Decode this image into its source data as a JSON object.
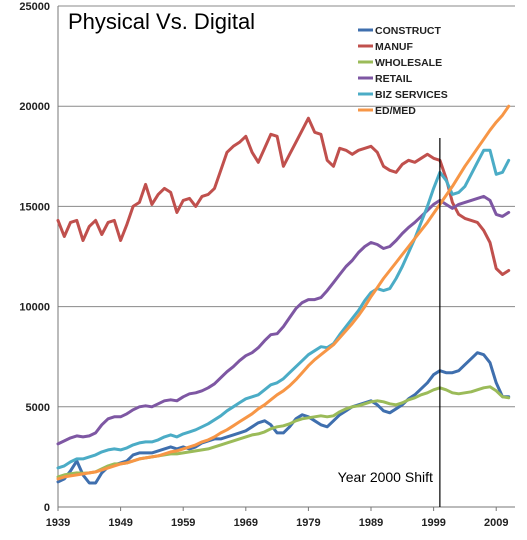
{
  "chart_data": {
    "type": "line",
    "title": "Physical Vs. Digital",
    "xlabel": "",
    "ylabel": "",
    "xlim": [
      1939,
      2012
    ],
    "ylim": [
      0,
      25000
    ],
    "x_ticks": [
      "1939",
      "1949",
      "1959",
      "1969",
      "1979",
      "1989",
      "1999",
      "2009"
    ],
    "y_ticks": [
      "0",
      "5000",
      "10000",
      "15000",
      "20000",
      "25000"
    ],
    "grid": "horizontal",
    "legend_position": "top-right",
    "annotation": {
      "label": "Year 2000 Shift",
      "x": 2000
    },
    "x": [
      1939,
      1940,
      1941,
      1942,
      1943,
      1944,
      1945,
      1946,
      1947,
      1948,
      1949,
      1950,
      1951,
      1952,
      1953,
      1954,
      1955,
      1956,
      1957,
      1958,
      1959,
      1960,
      1961,
      1962,
      1963,
      1964,
      1965,
      1966,
      1967,
      1968,
      1969,
      1970,
      1971,
      1972,
      1973,
      1974,
      1975,
      1976,
      1977,
      1978,
      1979,
      1980,
      1981,
      1982,
      1983,
      1984,
      1985,
      1986,
      1987,
      1988,
      1989,
      1990,
      1991,
      1992,
      1993,
      1994,
      1995,
      1996,
      1997,
      1998,
      1999,
      2000,
      2001,
      2002,
      2003,
      2004,
      2005,
      2006,
      2007,
      2008,
      2009,
      2010,
      2011
    ],
    "series": [
      {
        "name": "CONSTRUCT",
        "color": "#3f6fae",
        "values": [
          1250,
          1400,
          1800,
          2300,
          1600,
          1200,
          1200,
          1700,
          2000,
          2100,
          2200,
          2300,
          2600,
          2700,
          2700,
          2700,
          2800,
          2900,
          3000,
          2900,
          3000,
          2900,
          3000,
          3200,
          3300,
          3400,
          3400,
          3500,
          3600,
          3700,
          3800,
          4000,
          4200,
          4300,
          4100,
          3700,
          3700,
          4000,
          4400,
          4600,
          4500,
          4300,
          4100,
          4000,
          4300,
          4600,
          4800,
          5000,
          5100,
          5200,
          5300,
          5100,
          4800,
          4700,
          4900,
          5100,
          5400,
          5600,
          5900,
          6200,
          6600,
          6800,
          6700,
          6700,
          6800,
          7100,
          7400,
          7700,
          7600,
          7200,
          6200,
          5500,
          5500
        ]
      },
      {
        "name": "MANUF",
        "color": "#c0504d",
        "values": [
          14300,
          13500,
          14200,
          14300,
          13300,
          14000,
          14300,
          13600,
          14200,
          14300,
          13300,
          14100,
          15000,
          15200,
          16100,
          15100,
          15600,
          15900,
          15700,
          14700,
          15300,
          15400,
          15000,
          15500,
          15600,
          15900,
          16800,
          17700,
          18000,
          18200,
          18500,
          17700,
          17200,
          17900,
          18600,
          18500,
          17000,
          17600,
          18200,
          18800,
          19400,
          18700,
          18600,
          17300,
          17000,
          17900,
          17800,
          17600,
          17800,
          17900,
          18000,
          17700,
          17000,
          16800,
          16700,
          17100,
          17300,
          17200,
          17400,
          17600,
          17400,
          17300,
          16400,
          15200,
          14600,
          14400,
          14300,
          14200,
          13800,
          13200,
          11900,
          11600,
          11800
        ]
      },
      {
        "name": "WHOLESALE",
        "color": "#9bbb59",
        "values": [
          1500,
          1600,
          1650,
          1700,
          1680,
          1700,
          1750,
          1900,
          2050,
          2150,
          2150,
          2200,
          2300,
          2400,
          2450,
          2500,
          2550,
          2600,
          2650,
          2650,
          2700,
          2750,
          2800,
          2850,
          2900,
          3000,
          3100,
          3200,
          3300,
          3400,
          3500,
          3600,
          3650,
          3750,
          3900,
          4000,
          4050,
          4150,
          4300,
          4400,
          4450,
          4500,
          4550,
          4500,
          4550,
          4750,
          4900,
          5000,
          5050,
          5150,
          5250,
          5300,
          5250,
          5150,
          5100,
          5200,
          5350,
          5450,
          5600,
          5700,
          5850,
          5950,
          5850,
          5700,
          5650,
          5700,
          5750,
          5850,
          5950,
          6000,
          5800,
          5500,
          5450
        ]
      },
      {
        "name": "RETAIL",
        "color": "#7e57a3",
        "values": [
          3150,
          3300,
          3450,
          3550,
          3500,
          3550,
          3700,
          4100,
          4400,
          4500,
          4500,
          4650,
          4850,
          5000,
          5050,
          5000,
          5150,
          5300,
          5350,
          5300,
          5500,
          5650,
          5700,
          5800,
          5950,
          6150,
          6450,
          6750,
          7000,
          7300,
          7550,
          7700,
          7950,
          8300,
          8600,
          8650,
          9000,
          9450,
          9900,
          10200,
          10350,
          10350,
          10450,
          10800,
          11200,
          11600,
          12000,
          12300,
          12700,
          13000,
          13200,
          13100,
          12900,
          13000,
          13300,
          13650,
          13950,
          14200,
          14500,
          14800,
          15100,
          15300,
          15100,
          14900,
          15100,
          15200,
          15300,
          15400,
          15500,
          15300,
          14600,
          14500,
          14700
        ]
      },
      {
        "name": "BIZ SERVICES",
        "color": "#4bacc6",
        "values": [
          1950,
          2050,
          2250,
          2400,
          2400,
          2500,
          2600,
          2750,
          2850,
          2900,
          2850,
          2950,
          3100,
          3200,
          3250,
          3250,
          3350,
          3500,
          3600,
          3500,
          3650,
          3750,
          3850,
          4000,
          4150,
          4350,
          4550,
          4800,
          5000,
          5200,
          5400,
          5500,
          5600,
          5850,
          6100,
          6200,
          6400,
          6700,
          7000,
          7300,
          7600,
          7800,
          8000,
          7950,
          8150,
          8600,
          9000,
          9400,
          9800,
          10300,
          10700,
          10900,
          10800,
          10900,
          11400,
          12000,
          12700,
          13400,
          14200,
          15000,
          15900,
          16700,
          16300,
          15600,
          15700,
          16000,
          16600,
          17200,
          17800,
          17800,
          16600,
          16700,
          17300
        ]
      },
      {
        "name": "ED/MED",
        "color": "#f79646",
        "values": [
          1400,
          1500,
          1550,
          1600,
          1650,
          1700,
          1750,
          1850,
          1950,
          2050,
          2150,
          2200,
          2300,
          2400,
          2450,
          2500,
          2550,
          2650,
          2750,
          2800,
          2900,
          3000,
          3100,
          3250,
          3350,
          3500,
          3700,
          3850,
          4050,
          4250,
          4450,
          4650,
          4900,
          5100,
          5350,
          5600,
          5800,
          6050,
          6350,
          6700,
          7050,
          7350,
          7600,
          7850,
          8100,
          8450,
          8800,
          9150,
          9550,
          10000,
          10500,
          10950,
          11400,
          11800,
          12200,
          12600,
          13000,
          13400,
          13800,
          14200,
          14650,
          15100,
          15550,
          16000,
          16500,
          17000,
          17450,
          17900,
          18350,
          18800,
          19200,
          19550,
          20000
        ]
      }
    ]
  }
}
